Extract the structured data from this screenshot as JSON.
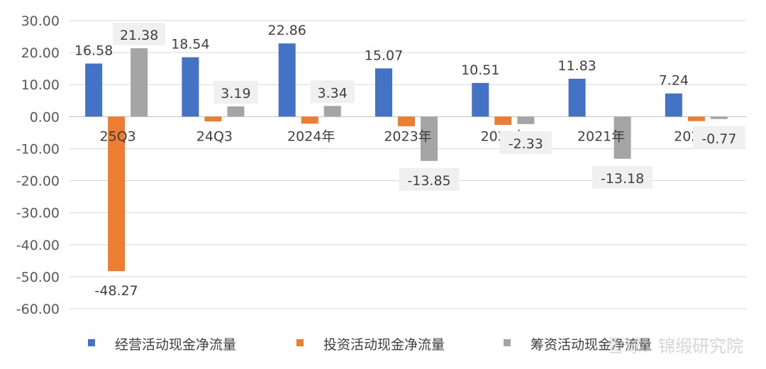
{
  "chart_data": {
    "type": "bar",
    "categories": [
      "25Q3",
      "24Q3",
      "2024年",
      "2023年",
      "2022年",
      "2021年",
      "2020年"
    ],
    "series": [
      {
        "name": "经营活动现金净流量",
        "color": "#4472c4",
        "values": [
          16.58,
          18.54,
          22.86,
          15.07,
          10.51,
          11.83,
          7.24
        ]
      },
      {
        "name": "投资活动现金净流量",
        "color": "#ed7d31",
        "values": [
          -48.27,
          -1.5,
          -2.2,
          -3.0,
          -2.6,
          0,
          -1.4
        ]
      },
      {
        "name": "筹资活动现金净流量",
        "color": "#a5a5a5",
        "values": [
          21.38,
          3.19,
          3.34,
          -13.85,
          -2.33,
          -13.18,
          -0.77
        ]
      }
    ],
    "data_labels": {
      "经营活动现金净流量": [
        "16.58",
        "18.54",
        "22.86",
        "15.07",
        "10.51",
        "11.83",
        "7.24"
      ],
      "投资活动现金净流量": [
        "-48.27",
        "",
        "",
        "",
        "",
        "",
        ""
      ],
      "筹资活动现金净流量": [
        "21.38",
        "3.19",
        "3.34",
        "-13.85",
        "-2.33",
        "-13.18",
        "-0.77"
      ]
    },
    "yticks": [
      "30.00",
      "20.00",
      "10.00",
      "0.00",
      "-10.00",
      "-20.00",
      "-30.00",
      "-40.00",
      "-50.00",
      "-60.00"
    ],
    "ylim": [
      -60,
      30
    ],
    "grid": true,
    "legend": "bottom",
    "title": "",
    "xlabel": "",
    "ylabel": ""
  },
  "watermark": "雪球：锦缎研究院"
}
